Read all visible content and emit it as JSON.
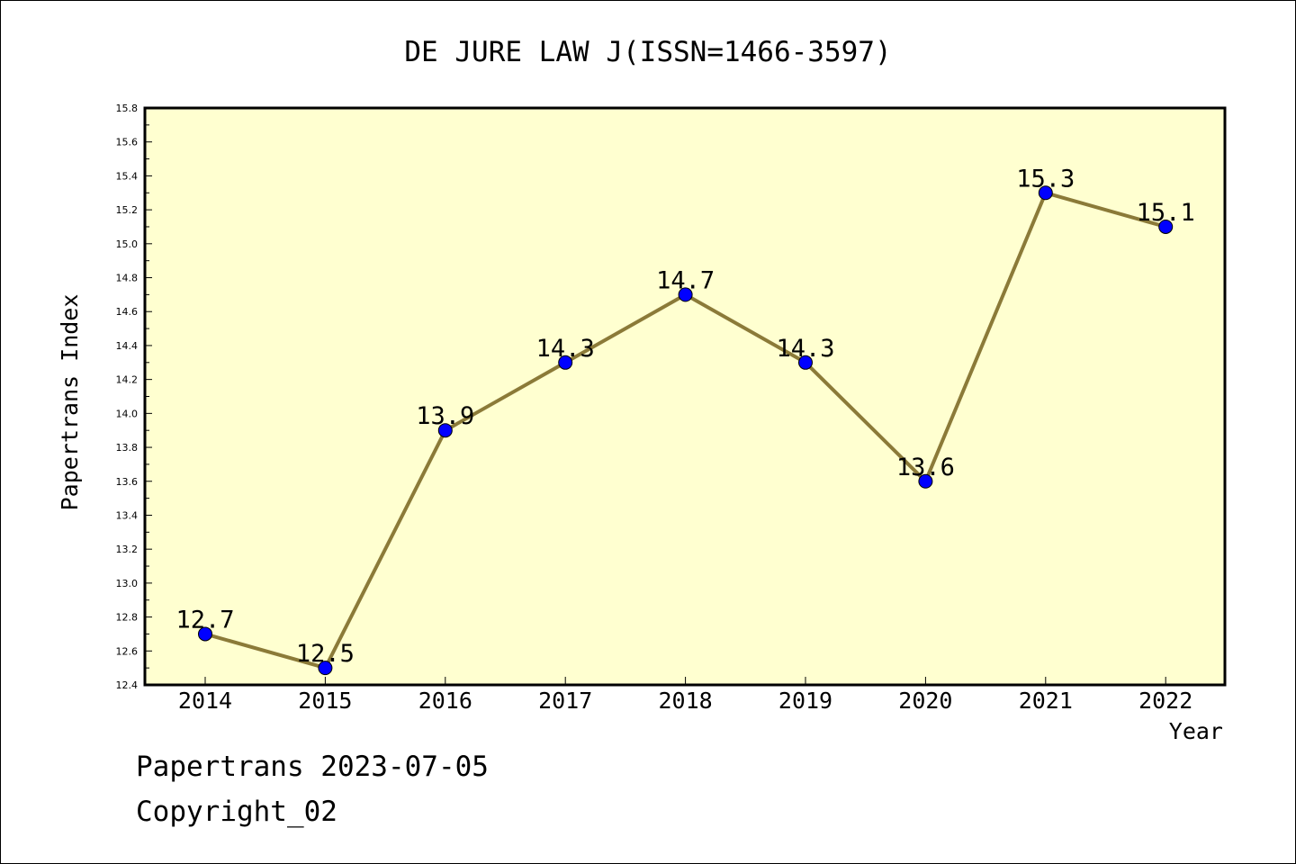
{
  "chart_data": {
    "type": "line",
    "title": "DE JURE LAW J(ISSN=1466-3597)",
    "xlabel": "Year",
    "ylabel": "Papertrans Index",
    "categories": [
      "2014",
      "2015",
      "2016",
      "2017",
      "2018",
      "2019",
      "2020",
      "2021",
      "2022"
    ],
    "values": [
      12.7,
      12.5,
      13.9,
      14.3,
      14.7,
      14.3,
      13.6,
      15.3,
      15.1
    ],
    "data_labels": [
      "12.7",
      "12.5",
      "13.9",
      "14.3",
      "14.7",
      "14.3",
      "13.6",
      "15.3",
      "15.1"
    ],
    "ylim": [
      12.4,
      15.8
    ],
    "yticks": [
      "12.4",
      "12.6",
      "12.8",
      "13.0",
      "13.2",
      "13.4",
      "13.6",
      "13.8",
      "14.0",
      "14.2",
      "14.4",
      "14.6",
      "14.8",
      "15.0",
      "15.2",
      "15.4",
      "15.6",
      "15.8"
    ],
    "grid": false,
    "legend": "none",
    "colors": {
      "plot_background": "#ffffd0",
      "line": "#8b7a38",
      "marker": "#0000ff"
    }
  },
  "footer": {
    "line1": "Papertrans 2023-07-05",
    "line2": "Copyright_02"
  }
}
